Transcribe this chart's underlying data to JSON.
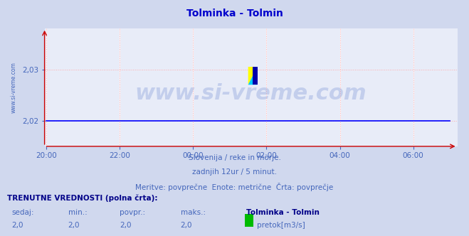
{
  "title": "Tolminka - Tolmin",
  "title_color": "#0000cc",
  "background_color": "#d0d8ee",
  "plot_bg_color": "#e8ecf8",
  "x_labels": [
    "20:00",
    "22:00",
    "00:00",
    "02:00",
    "04:00",
    "06:00"
  ],
  "x_ticks": [
    0,
    2,
    4,
    6,
    8,
    10
  ],
  "x_min": -0.05,
  "x_max": 11.2,
  "y_min": 2.015,
  "y_max": 2.038,
  "y_ticks": [
    2.02,
    2.03
  ],
  "y_tick_labels": [
    "2,02",
    "2,03"
  ],
  "watermark": "www.si-vreme.com",
  "watermark_color": "#5577cc",
  "watermark_alpha": 0.25,
  "line_color": "#0000ff",
  "line_y": 2.02,
  "left_label": "www.si-vreme.com",
  "subtitle1": "Slovenija / reke in morje.",
  "subtitle2": "zadnjih 12ur / 5 minut.",
  "subtitle3": "Meritve: povprečne  Enote: metrične  Črta: povprečje",
  "subtitle_color": "#4466bb",
  "footer_bold": "TRENUTNE VREDNOSTI (polna črta):",
  "footer_col1": "sedaj:",
  "footer_col2": "min.:",
  "footer_col3": "povpr.:",
  "footer_col4": "maks.:",
  "footer_col5": "Tolminka - Tolmin",
  "footer_val1": "2,0",
  "footer_val2": "2,0",
  "footer_val3": "2,0",
  "footer_val4": "2,0",
  "footer_legend": "pretok[m3/s]",
  "footer_legend_color": "#00bb00",
  "text_color_bold": "#000088"
}
